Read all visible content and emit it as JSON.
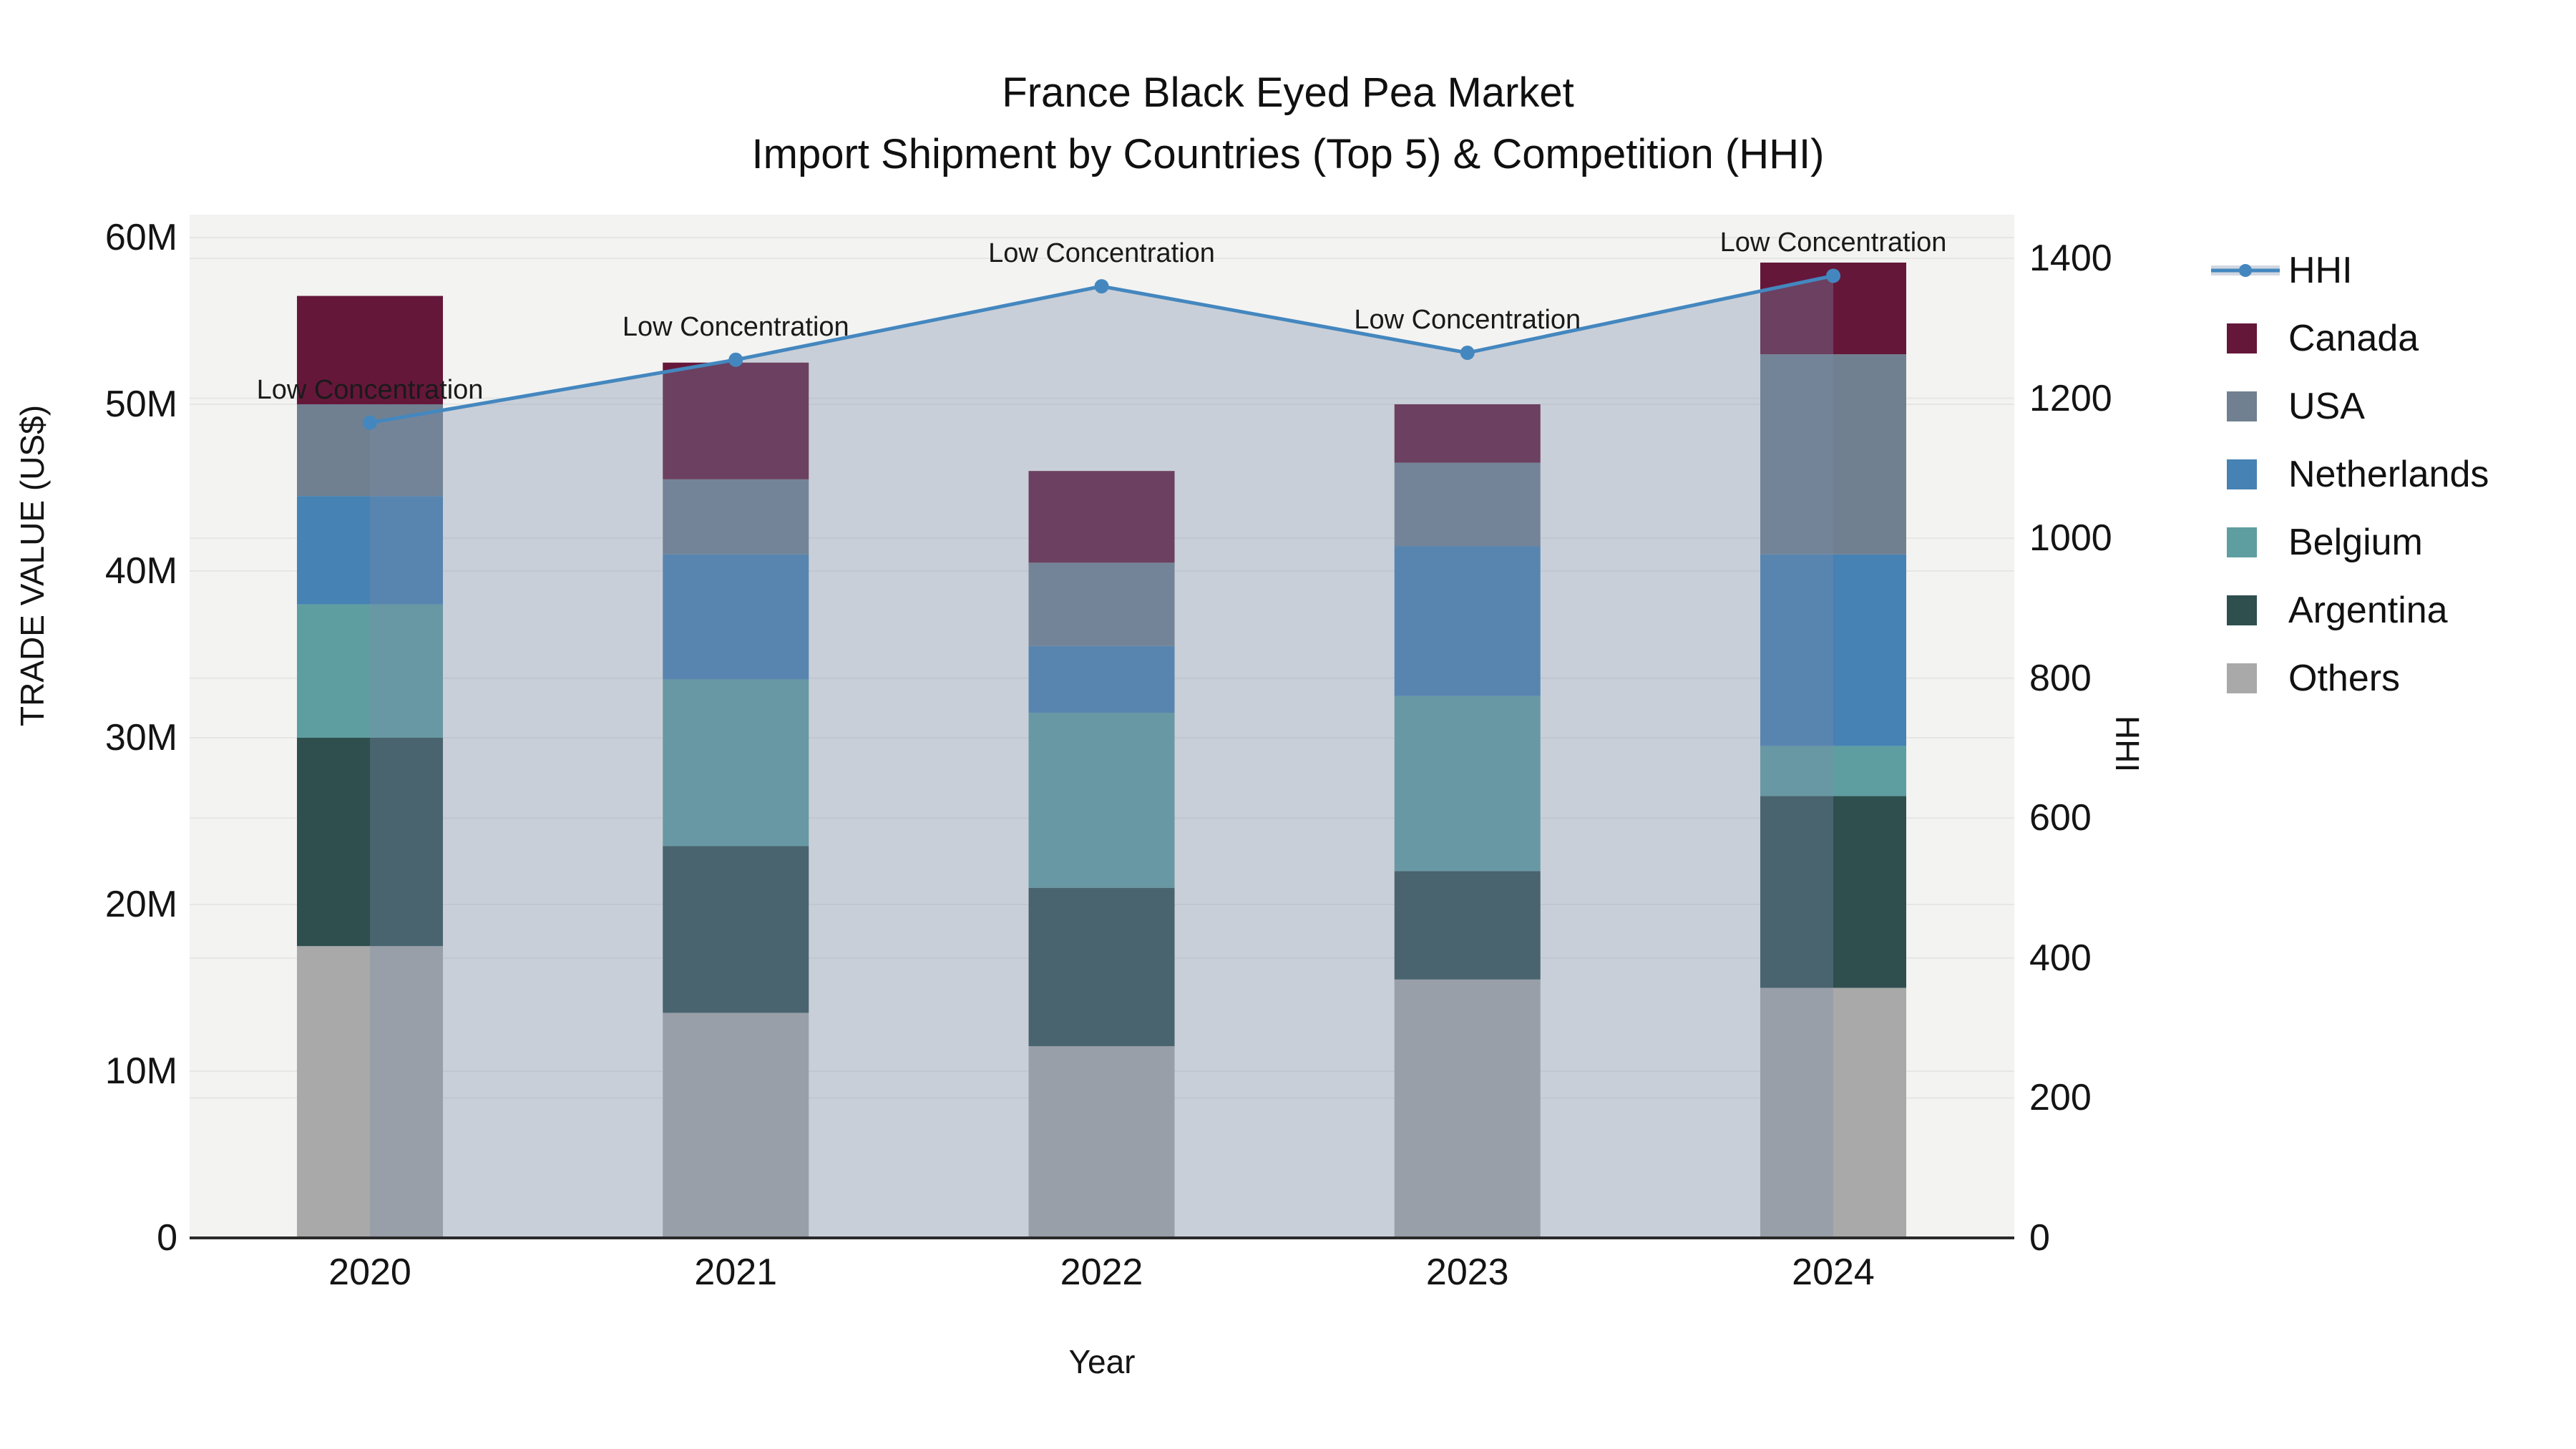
{
  "chart_data": {
    "type": "combo-stacked-bar-line",
    "title": "France Black Eyed Pea Market",
    "subtitle": "Import Shipment by Countries (Top 5) & Competition (HHI)",
    "xlabel": "Year",
    "ylabel_left": "TRADE VALUE (US$)",
    "ylabel_right": "HHI",
    "categories": [
      "2020",
      "2021",
      "2022",
      "2023",
      "2024"
    ],
    "stack_order_bottom_to_top": [
      "Others",
      "Argentina",
      "Belgium",
      "Netherlands",
      "USA",
      "Canada"
    ],
    "series": [
      {
        "key": "others",
        "name": "Others",
        "color": "#A9A9A9",
        "values_millions_usd": [
          17.5,
          13.5,
          11.5,
          15.5,
          15.0
        ]
      },
      {
        "key": "argentina",
        "name": "Argentina",
        "color": "#2F4F4F",
        "values_millions_usd": [
          12.5,
          10.0,
          9.5,
          6.5,
          11.5
        ]
      },
      {
        "key": "belgium",
        "name": "Belgium",
        "color": "#5F9EA0",
        "values_millions_usd": [
          8.0,
          10.0,
          10.5,
          10.5,
          3.0
        ]
      },
      {
        "key": "netherlands",
        "name": "Netherlands",
        "color": "#4682B4",
        "values_millions_usd": [
          6.5,
          7.5,
          4.0,
          9.0,
          11.5
        ]
      },
      {
        "key": "usa",
        "name": "USA",
        "color": "#708090",
        "values_millions_usd": [
          5.5,
          4.5,
          5.0,
          5.0,
          12.0
        ]
      },
      {
        "key": "canada",
        "name": "Canada",
        "color": "#65173A",
        "values_millions_usd": [
          6.5,
          7.0,
          5.5,
          3.5,
          5.5
        ]
      }
    ],
    "line_series": {
      "key": "hhi",
      "name": "HHI",
      "axis": "right",
      "color": "#4487BF",
      "area_fill": "rgba(124,140,168,0.35)",
      "values": [
        1165,
        1255,
        1360,
        1265,
        1375
      ]
    },
    "annotations": [
      {
        "year": "2020",
        "text": "Low Concentration"
      },
      {
        "year": "2021",
        "text": "Low Concentration"
      },
      {
        "year": "2022",
        "text": "Low Concentration"
      },
      {
        "year": "2023",
        "text": "Low Concentration"
      },
      {
        "year": "2024",
        "text": "Low Concentration"
      }
    ],
    "y_left": {
      "tick_labels": [
        "0",
        "10M",
        "20M",
        "30M",
        "40M",
        "50M",
        "60M"
      ],
      "tick_values_millions": [
        0,
        10,
        20,
        30,
        40,
        50,
        60
      ],
      "range_millions": [
        0,
        61.4
      ]
    },
    "y_right": {
      "tick_labels": [
        "0",
        "200",
        "400",
        "600",
        "800",
        "1000",
        "1200",
        "1400"
      ],
      "tick_values": [
        0,
        200,
        400,
        600,
        800,
        1000,
        1200,
        1400
      ],
      "range": [
        0,
        1462
      ]
    },
    "legend": {
      "position": "right",
      "entries": [
        "HHI",
        "Canada",
        "USA",
        "Netherlands",
        "Belgium",
        "Argentina",
        "Others"
      ]
    },
    "grid": true,
    "plot_bg": "#F3F3F2",
    "grid_color": "#E6E6E5",
    "axis_line_color": "#2A2A2A"
  }
}
